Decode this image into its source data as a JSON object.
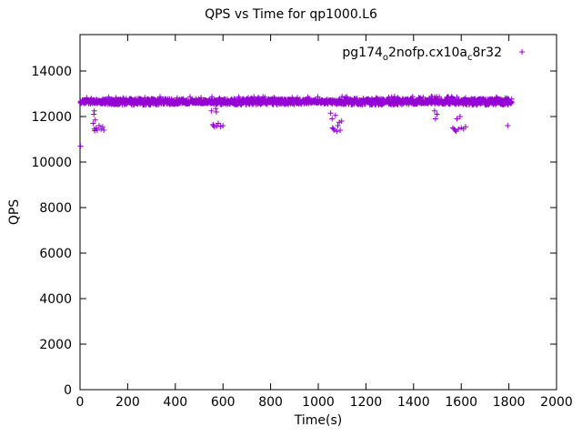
{
  "title": "QPS vs Time for qp1000.L6",
  "legend": {
    "label": "pg174_o2nofp.cx10a_c8r32",
    "parts": [
      {
        "text": "pg174"
      },
      {
        "text": "o",
        "sub": true
      },
      {
        "text": "2nofp.cx10a"
      },
      {
        "text": "c",
        "sub": true
      },
      {
        "text": "8r32"
      }
    ],
    "marker": "plus",
    "color": "#9400d3"
  },
  "chart_data": {
    "type": "scatter",
    "title": "QPS vs Time for qp1000.L6",
    "xlabel": "Time(s)",
    "ylabel": "QPS",
    "xlim": [
      0,
      2000
    ],
    "ylim": [
      0,
      15600
    ],
    "xticks": [
      0,
      200,
      400,
      600,
      800,
      1000,
      1200,
      1400,
      1600,
      1800,
      2000
    ],
    "yticks": [
      0,
      2000,
      4000,
      6000,
      8000,
      10000,
      12000,
      14000
    ],
    "grid": false,
    "legend_position": "top-right-inside",
    "series": [
      {
        "name": "pg174_o2nofp.cx10a_c8r32",
        "marker": "plus",
        "color": "#9400d3",
        "band": {
          "x_start": 2,
          "x_end": 1812,
          "x_step": 2,
          "y_center": 12650,
          "y_jitter": 140
        },
        "outliers": [
          [
            2,
            10700
          ],
          [
            55,
            11700
          ],
          [
            58,
            12100
          ],
          [
            60,
            12250
          ],
          [
            60,
            11450
          ],
          [
            62,
            11380
          ],
          [
            64,
            11850
          ],
          [
            68,
            11500
          ],
          [
            72,
            11400
          ],
          [
            80,
            11600
          ],
          [
            88,
            11450
          ],
          [
            95,
            11550
          ],
          [
            100,
            11400
          ],
          [
            552,
            12250
          ],
          [
            558,
            11650
          ],
          [
            560,
            11600
          ],
          [
            565,
            11550
          ],
          [
            570,
            12350
          ],
          [
            572,
            12200
          ],
          [
            575,
            11600
          ],
          [
            580,
            11700
          ],
          [
            590,
            11560
          ],
          [
            600,
            11600
          ],
          [
            1052,
            12150
          ],
          [
            1058,
            11900
          ],
          [
            1060,
            11500
          ],
          [
            1063,
            11450
          ],
          [
            1068,
            11400
          ],
          [
            1072,
            12050
          ],
          [
            1078,
            11350
          ],
          [
            1082,
            11600
          ],
          [
            1088,
            11750
          ],
          [
            1092,
            11400
          ],
          [
            1098,
            11800
          ],
          [
            1488,
            12250
          ],
          [
            1492,
            11900
          ],
          [
            1498,
            12100
          ],
          [
            1565,
            11500
          ],
          [
            1570,
            11450
          ],
          [
            1575,
            11400
          ],
          [
            1578,
            11350
          ],
          [
            1582,
            11900
          ],
          [
            1588,
            11450
          ],
          [
            1595,
            12000
          ],
          [
            1600,
            11500
          ],
          [
            1610,
            11450
          ],
          [
            1618,
            11550
          ],
          [
            1795,
            11600
          ]
        ]
      }
    ]
  }
}
